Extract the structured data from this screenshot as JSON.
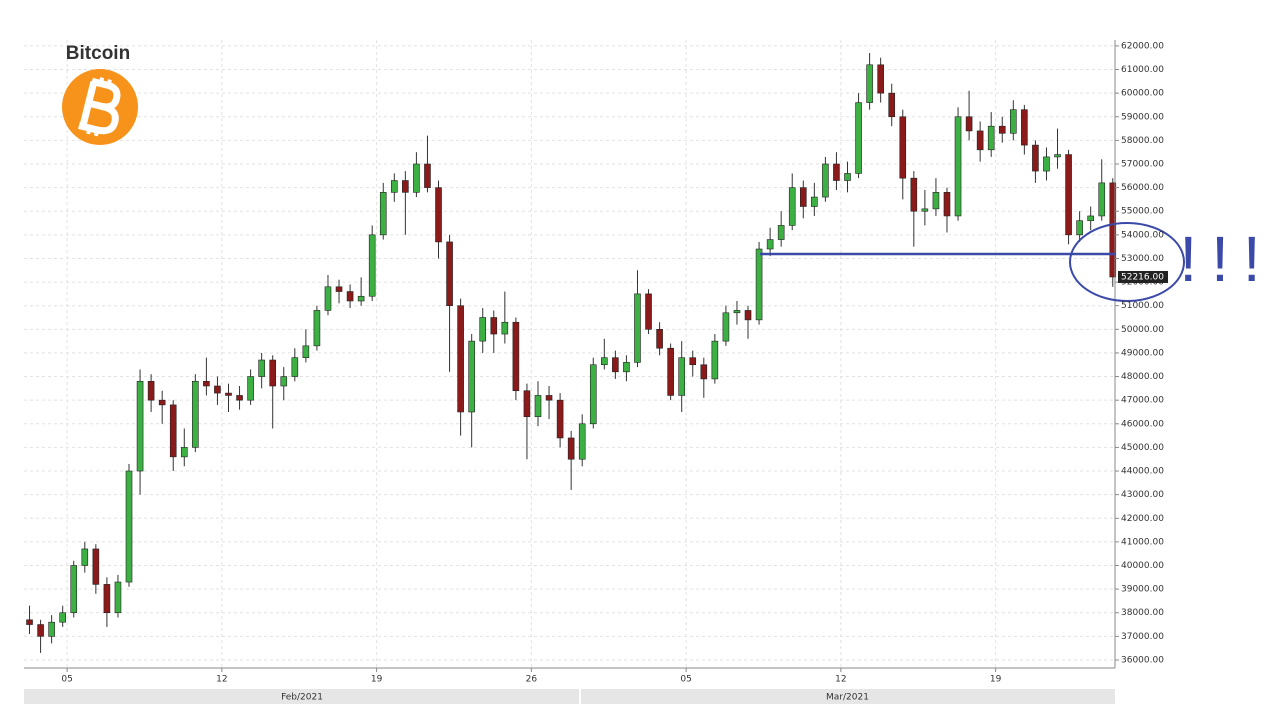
{
  "chart_data": {
    "type": "candlestick",
    "title": "Bitcoin",
    "annotation": "!!!",
    "last_price": {
      "value": 52216,
      "label": "52216.00"
    },
    "up_color": "#3cb043",
    "down_color": "#8b1a1a",
    "grid": true,
    "xlim": [
      2.05,
      51.4
    ],
    "xticks": [
      {
        "value": 4,
        "label": "05"
      },
      {
        "value": 11,
        "label": "12"
      },
      {
        "value": 18,
        "label": "19"
      },
      {
        "value": 25,
        "label": "26"
      },
      {
        "value": 32,
        "label": "05"
      },
      {
        "value": 39,
        "label": "12"
      },
      {
        "value": 46,
        "label": "19"
      }
    ],
    "x_bands": [
      {
        "label": "Feb/2021",
        "range": [
          2.05,
          27.2
        ]
      },
      {
        "label": "Mar/2021",
        "range": [
          27.2,
          51.4
        ]
      }
    ],
    "ylim": [
      35660,
      62250
    ],
    "yticks": [
      {
        "value": 36000,
        "label": "36000.00"
      },
      {
        "value": 37000,
        "label": "37000.00"
      },
      {
        "value": 38000,
        "label": "38000.00"
      },
      {
        "value": 39000,
        "label": "39000.00"
      },
      {
        "value": 40000,
        "label": "40000.00"
      },
      {
        "value": 41000,
        "label": "41000.00"
      },
      {
        "value": 42000,
        "label": "42000.00"
      },
      {
        "value": 43000,
        "label": "43000.00"
      },
      {
        "value": 44000,
        "label": "44000.00"
      },
      {
        "value": 45000,
        "label": "45000.00"
      },
      {
        "value": 46000,
        "label": "46000.00"
      },
      {
        "value": 47000,
        "label": "47000.00"
      },
      {
        "value": 48000,
        "label": "48000.00"
      },
      {
        "value": 49000,
        "label": "49000.00"
      },
      {
        "value": 50000,
        "label": "50000.00"
      },
      {
        "value": 51000,
        "label": "51000.00"
      },
      {
        "value": 52000,
        "label": "52000.00"
      },
      {
        "value": 53000,
        "label": "53000.00"
      },
      {
        "value": 54000,
        "label": "54000.00"
      },
      {
        "value": 55000,
        "label": "55000.00"
      },
      {
        "value": 56000,
        "label": "56000.00"
      },
      {
        "value": 57000,
        "label": "57000.00"
      },
      {
        "value": 58000,
        "label": "58000.00"
      },
      {
        "value": 59000,
        "label": "59000.00"
      },
      {
        "value": 60000,
        "label": "60000.00"
      },
      {
        "value": 61000,
        "label": "61000.00"
      },
      {
        "value": 62000,
        "label": "62000.00"
      }
    ],
    "x": [
      2.3,
      2.8,
      3.3,
      3.8,
      4.3,
      4.8,
      5.3,
      5.8,
      6.3,
      6.8,
      7.3,
      7.8,
      8.3,
      8.8,
      9.3,
      9.8,
      10.3,
      10.8,
      11.3,
      11.8,
      12.3,
      12.8,
      13.3,
      13.8,
      14.3,
      14.8,
      15.3,
      15.8,
      16.3,
      16.8,
      17.3,
      17.8,
      18.3,
      18.8,
      19.3,
      19.8,
      20.3,
      20.8,
      21.3,
      21.8,
      22.3,
      22.8,
      23.3,
      23.8,
      24.3,
      24.8,
      25.3,
      25.8,
      26.3,
      26.8,
      27.3,
      27.8,
      28.3,
      28.8,
      29.3,
      29.8,
      30.3,
      30.8,
      31.3,
      31.8,
      32.3,
      32.8,
      33.3,
      33.8,
      34.3,
      34.8,
      35.3,
      35.8,
      36.3,
      36.8,
      37.3,
      37.8,
      38.3,
      38.8,
      39.3,
      39.8,
      40.3,
      40.8,
      41.3,
      41.8,
      42.3,
      42.8,
      43.3,
      43.8,
      44.3,
      44.8,
      45.3,
      45.8,
      46.3,
      46.8,
      47.3,
      47.8,
      48.3,
      48.8,
      49.3,
      49.8,
      50.3,
      50.8,
      51.3
    ],
    "open": [
      37700,
      37500,
      37000,
      37600,
      38000,
      40000,
      40700,
      39200,
      38000,
      39300,
      44000,
      47800,
      47000,
      46800,
      44600,
      45000,
      47800,
      47600,
      47300,
      47200,
      47000,
      48000,
      48700,
      47600,
      48000,
      48800,
      49300,
      50800,
      51800,
      51600,
      51200,
      51400,
      54000,
      55800,
      56300,
      55800,
      57000,
      56000,
      53700,
      51000,
      46500,
      49500,
      50500,
      49800,
      50300,
      47400,
      46300,
      47200,
      47000,
      45400,
      44500,
      46000,
      48500,
      48800,
      48200,
      48600,
      51500,
      50000,
      49200,
      47200,
      48800,
      48500,
      47900,
      49500,
      50700,
      50800,
      50400,
      53400,
      53800,
      54400,
      56000,
      55200,
      55600,
      57000,
      56300,
      56600,
      59600,
      61200,
      60000,
      59000,
      56400,
      55000,
      55100,
      55800,
      54800,
      59000,
      58400,
      57600,
      58600,
      58300,
      59300,
      57800,
      56700,
      57300,
      57400,
      54000,
      54600,
      54800,
      56200
    ],
    "high": [
      38300,
      37700,
      37900,
      38300,
      40200,
      41000,
      40900,
      39500,
      39600,
      44300,
      48300,
      48100,
      47400,
      47000,
      45800,
      48100,
      48800,
      48000,
      47700,
      47600,
      48300,
      49000,
      48900,
      48400,
      49200,
      50000,
      51000,
      52300,
      52100,
      51900,
      52200,
      54400,
      56200,
      56600,
      56700,
      57500,
      58200,
      56300,
      54000,
      51300,
      49800,
      50900,
      50800,
      51600,
      50500,
      47700,
      47800,
      47600,
      47300,
      45700,
      46400,
      48800,
      49600,
      49100,
      48900,
      52500,
      51700,
      50300,
      49400,
      49500,
      49100,
      48800,
      49800,
      51000,
      51200,
      51000,
      53700,
      54300,
      55000,
      56600,
      56300,
      56200,
      57300,
      57500,
      57100,
      60000,
      61700,
      61500,
      60400,
      59300,
      56700,
      55900,
      56400,
      56000,
      59400,
      60100,
      58800,
      59200,
      59000,
      59700,
      59500,
      58000,
      57700,
      58500,
      57600,
      55000,
      55200,
      57200,
      56400
    ],
    "low": [
      37100,
      36300,
      36700,
      37400,
      37800,
      39700,
      38800,
      37400,
      37800,
      39100,
      43000,
      46500,
      46000,
      44000,
      44200,
      44800,
      47200,
      46800,
      46500,
      46600,
      46800,
      47500,
      45800,
      47000,
      47800,
      48600,
      49100,
      50600,
      51100,
      50900,
      51000,
      51200,
      53800,
      55400,
      54000,
      55600,
      55800,
      53000,
      48200,
      45500,
      45000,
      49000,
      49000,
      49400,
      47000,
      44500,
      45900,
      46200,
      45000,
      43200,
      44200,
      45800,
      48300,
      47900,
      47800,
      48400,
      49800,
      48900,
      47000,
      46500,
      48000,
      47100,
      47700,
      49300,
      50200,
      49600,
      50200,
      53100,
      53500,
      54200,
      54700,
      54800,
      55400,
      55900,
      55800,
      56400,
      59300,
      59600,
      58600,
      55500,
      53500,
      54400,
      54800,
      54100,
      54600,
      58000,
      57100,
      57300,
      57900,
      58000,
      57400,
      56200,
      56300,
      56800,
      53600,
      53700,
      54200,
      54600,
      51800
    ],
    "close": [
      37500,
      37000,
      37600,
      38000,
      40000,
      40700,
      39200,
      38000,
      39300,
      44000,
      47800,
      47000,
      46800,
      44600,
      45000,
      47800,
      47600,
      47300,
      47200,
      47000,
      48000,
      48700,
      47600,
      48000,
      48800,
      49300,
      50800,
      51800,
      51600,
      51200,
      51400,
      54000,
      55800,
      56300,
      55800,
      57000,
      56000,
      53700,
      51000,
      46500,
      49500,
      50500,
      49800,
      50300,
      47400,
      46300,
      47200,
      47000,
      45400,
      44500,
      46000,
      48500,
      48800,
      48200,
      48600,
      51500,
      50000,
      49200,
      47200,
      48800,
      48500,
      47900,
      49500,
      50700,
      50800,
      50400,
      53400,
      53800,
      54400,
      56000,
      55200,
      55600,
      57000,
      56300,
      56600,
      59600,
      61200,
      60000,
      59000,
      56400,
      55000,
      55100,
      55800,
      54800,
      59000,
      58400,
      57600,
      58600,
      58300,
      59300,
      57800,
      56700,
      57300,
      57400,
      54000,
      54600,
      54800,
      56200,
      52216
    ]
  }
}
